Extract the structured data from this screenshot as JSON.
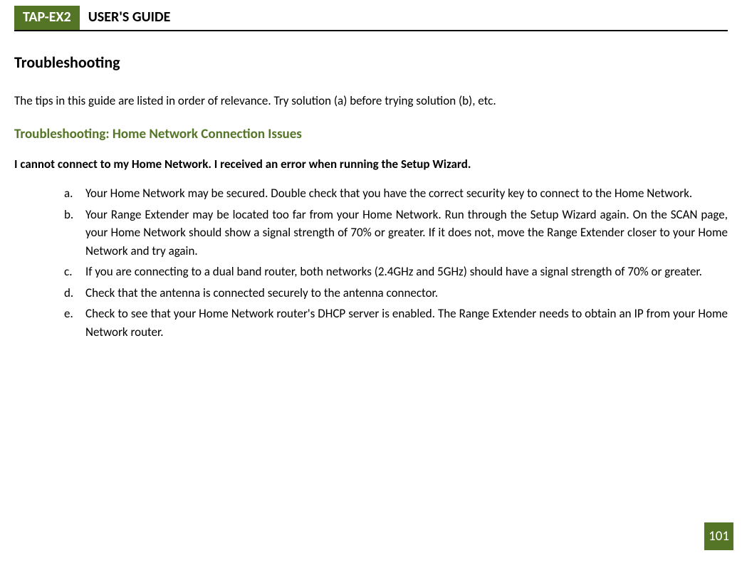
{
  "header": {
    "product": "TAP-EX2",
    "title": "USER'S GUIDE"
  },
  "colors": {
    "accent": "#557526",
    "text": "#000000",
    "background": "#ffffff"
  },
  "section": {
    "title": "Troubleshooting",
    "intro": "The tips in this guide are listed in order of relevance. Try solution (a) before trying solution (b), etc.",
    "subheading": "Troubleshooting: Home Network Connection Issues",
    "question": "I cannot connect to my Home Network. I received an error when running the Setup Wizard.",
    "items": [
      {
        "marker": "a.",
        "text": "Your Home Network may be secured. Double check that you have the correct security key to connect to the Home Network."
      },
      {
        "marker": "b.",
        "text": "Your Range Extender may be located too far from your Home Network. Run through the Setup Wizard again. On the SCAN page, your Home Network should show a signal strength of 70% or greater. If it does not, move the Range Extender closer to your Home Network and try again."
      },
      {
        "marker": "c.",
        "text": "If you are connecting to a dual band router, both networks (2.4GHz and 5GHz) should have a signal strength of 70% or greater."
      },
      {
        "marker": "d.",
        "text": "Check that the antenna is connected securely to the antenna connector."
      },
      {
        "marker": "e.",
        "text": "Check to see that your Home Network router's DHCP server is enabled. The Range Extender needs to obtain an IP from your Home Network router."
      }
    ]
  },
  "page_number": "101"
}
